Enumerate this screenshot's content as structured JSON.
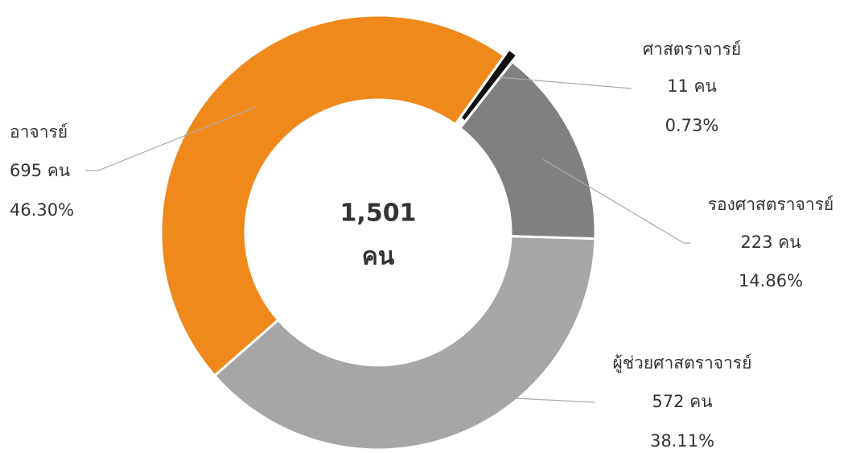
{
  "chart_data": {
    "type": "donut",
    "categories": [
      "ศาสตราจารย์",
      "รองศาสตราจารย์",
      "ผู้ช่วยศาสตราจารย์",
      "อาจารย์"
    ],
    "values": [
      11,
      223,
      572,
      695
    ],
    "value_labels": [
      "11 คน",
      "223 คน",
      "572 คน",
      "695 คน"
    ],
    "percent_labels": [
      "0.73%",
      "14.86%",
      "38.11%",
      "46.30%"
    ],
    "colors": [
      "#111111",
      "#808080",
      "#a6a6a6",
      "#f0891c"
    ],
    "center_total": "1,501",
    "center_unit": "คน"
  }
}
